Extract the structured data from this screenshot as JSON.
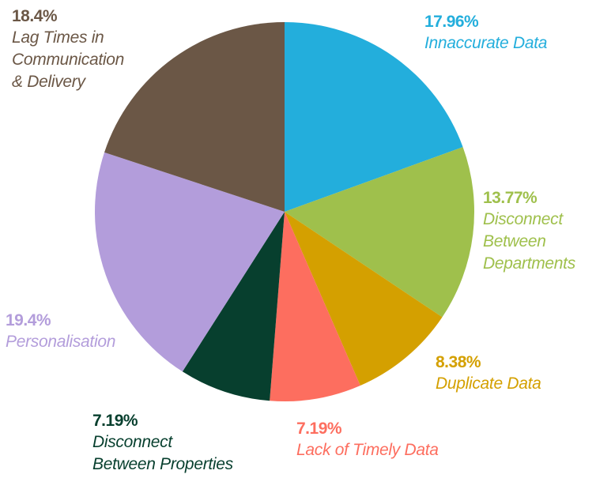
{
  "chart_data": {
    "type": "pie",
    "categories": [
      "Innaccurate Data",
      "Disconnect\nBetween\nDepartments",
      "Duplicate Data",
      "Lack of Timely Data",
      "Disconnect\nBetween Properties",
      "Personalisation",
      "Lag Times in\nCommunication\n& Delivery"
    ],
    "values": [
      17.96,
      13.77,
      8.38,
      7.19,
      7.19,
      19.4,
      18.4
    ],
    "value_labels": [
      "17.96%",
      "13.77%",
      "8.38%",
      "7.19%",
      "7.19%",
      "19.4%",
      "18.4%"
    ],
    "colors": [
      "#23aedc",
      "#9fc04c",
      "#d4a000",
      "#fd6e5f",
      "#073f2e",
      "#b39ddb",
      "#6b5746"
    ]
  }
}
